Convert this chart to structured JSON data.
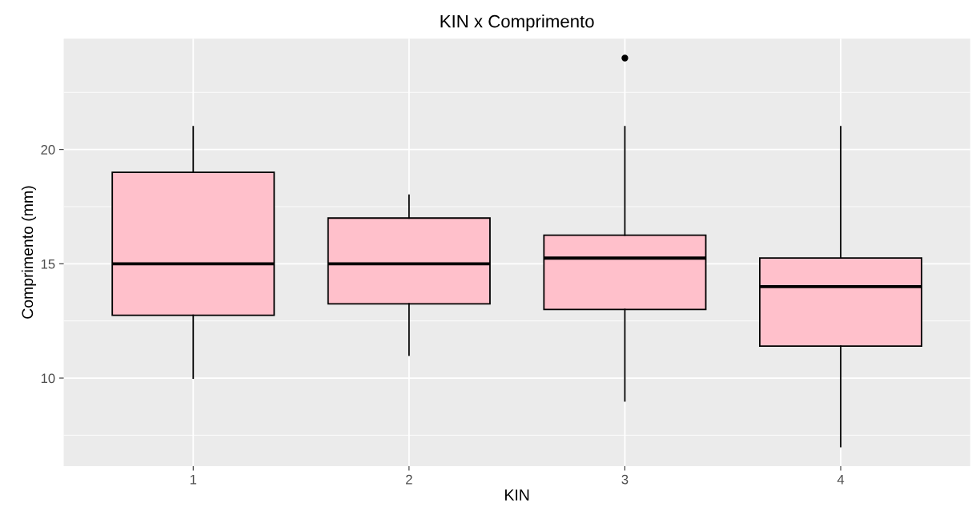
{
  "chart_data": {
    "type": "box",
    "title": "KIN x Comprimento",
    "xlabel": "KIN",
    "ylabel": "Comprimento (mm)",
    "categories": [
      "1",
      "2",
      "3",
      "4"
    ],
    "color": "#ffc0cb",
    "boxes": [
      {
        "low": 10,
        "q1": 12.75,
        "median": 15,
        "q3": 19,
        "high": 21
      },
      {
        "low": 11,
        "q1": 13.25,
        "median": 15,
        "q3": 17,
        "high": 18
      },
      {
        "low": 9,
        "q1": 13,
        "median": 15.25,
        "q3": 16.25,
        "high": 21,
        "outliers": [
          24
        ]
      },
      {
        "low": 7,
        "q1": 11.4,
        "median": 14,
        "q3": 15.25,
        "high": 21
      }
    ],
    "ylim": [
      6.15,
      24.85
    ],
    "yticks": [
      {
        "value": 7.5,
        "label": null
      },
      10,
      {
        "value": 12.5,
        "label": null
      },
      15,
      {
        "value": 17.5,
        "label": null
      },
      20,
      {
        "value": 22.5,
        "label": null
      }
    ],
    "grid": true,
    "legend": false
  }
}
